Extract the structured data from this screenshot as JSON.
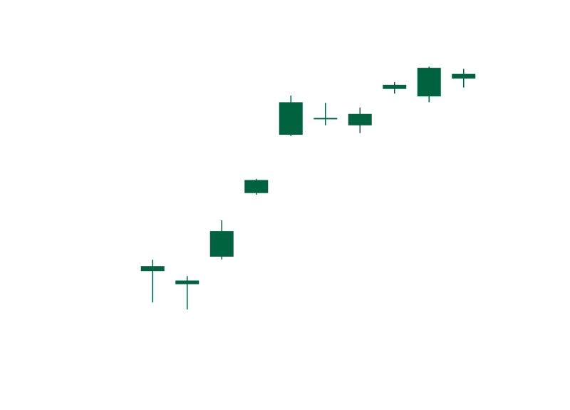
{
  "chart_data": {
    "type": "candlestick",
    "title": "",
    "xlabel": "",
    "ylabel": "",
    "axes_visible": false,
    "grid": false,
    "colors": {
      "candle": "#006340",
      "background": "#ffffff"
    },
    "ylim": [
      0,
      100
    ],
    "candles": [
      {
        "open": 21.0,
        "close": 22.8,
        "high": 25.1,
        "low": 9.7
      },
      {
        "open": 17.6,
        "close": 16.3,
        "high": 19.2,
        "low": 7.2
      },
      {
        "open": 26.2,
        "close": 35.4,
        "high": 39.3,
        "low": 25.2
      },
      {
        "open": 53.8,
        "close": 49.1,
        "high": 54.2,
        "low": 48.5
      },
      {
        "open": 70.1,
        "close": 81.8,
        "high": 84.2,
        "low": 69.6
      },
      {
        "open": 75.9,
        "close": 75.9,
        "high": 81.6,
        "low": 73.5
      },
      {
        "open": 77.6,
        "close": 73.5,
        "high": 79.9,
        "low": 70.7
      },
      {
        "open": 88.1,
        "close": 86.6,
        "high": 89.1,
        "low": 84.9
      },
      {
        "open": 83.9,
        "close": 94.2,
        "high": 94.6,
        "low": 81.8
      },
      {
        "open": 92.0,
        "close": 90.3,
        "high": 93.8,
        "low": 87.1
      }
    ]
  }
}
